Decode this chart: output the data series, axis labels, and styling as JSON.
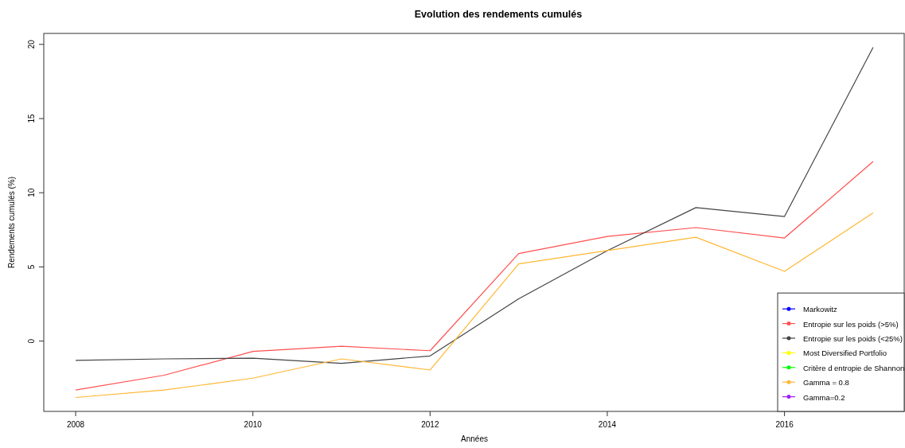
{
  "chart_data": {
    "type": "line",
    "title": "Evolution des rendements cumulés",
    "xlabel": "Années",
    "ylabel": "Rendements cumulés (%)",
    "x": [
      2008,
      2009,
      2010,
      2011,
      2012,
      2013,
      2014,
      2015,
      2016,
      2017
    ],
    "xlim": [
      2007.64,
      2017.36
    ],
    "xticks": [
      2008,
      2010,
      2012,
      2014,
      2016
    ],
    "ylim": [
      -4.74,
      20.74
    ],
    "yticks": [
      0,
      5,
      10,
      15,
      20
    ],
    "grid": false,
    "legend": "bottom right",
    "marker": "none",
    "line_style": "solid",
    "series": [
      {
        "name": "Markowitz",
        "color": "#0000ff",
        "values": [
          null,
          null,
          null,
          null,
          null,
          null,
          null,
          null,
          null,
          null
        ]
      },
      {
        "name": "Entropie sur les poids (>5%)",
        "color": "#ff5050",
        "values": [
          -3.3,
          -2.3,
          -0.7,
          -0.35,
          -0.65,
          5.9,
          7.05,
          7.65,
          6.95,
          12.1
        ]
      },
      {
        "name": "Entropie sur les poids (<25%)",
        "color": "#444444",
        "values": [
          -1.3,
          -1.2,
          -1.15,
          -1.5,
          -1.0,
          2.85,
          6.1,
          9.0,
          8.4,
          19.8
        ]
      },
      {
        "name": "Most Diversified Portfolio",
        "color": "#ffff00",
        "values": [
          null,
          null,
          null,
          null,
          null,
          null,
          null,
          null,
          null,
          null
        ]
      },
      {
        "name": "Critère d entropie de Shannon",
        "color": "#00ff00",
        "values": [
          null,
          null,
          null,
          null,
          null,
          null,
          null,
          null,
          null,
          null
        ]
      },
      {
        "name": "Gamma = 0.8",
        "color": "#ffb732",
        "values": [
          -3.8,
          -3.3,
          -2.5,
          -1.2,
          -1.95,
          5.2,
          6.1,
          7.0,
          4.7,
          8.65
        ]
      },
      {
        "name": "Gamma=0.2",
        "color": "#a020f0",
        "values": [
          null,
          null,
          null,
          null,
          null,
          null,
          null,
          null,
          null,
          null
        ]
      }
    ]
  }
}
